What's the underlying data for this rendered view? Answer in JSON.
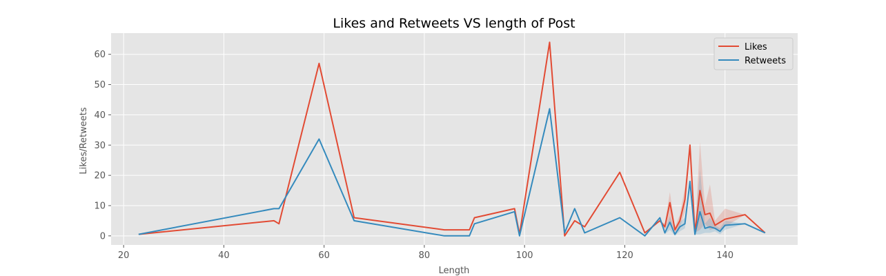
{
  "chart_data": {
    "type": "line",
    "title": "Likes and Retweets VS length of Post",
    "xlabel": "Length",
    "ylabel": "Likes/Retweets",
    "xlim": [
      17.5,
      154.5
    ],
    "ylim": [
      -3,
      67
    ],
    "xticks": [
      20,
      40,
      60,
      80,
      100,
      120,
      140
    ],
    "yticks": [
      0,
      10,
      20,
      30,
      40,
      50,
      60
    ],
    "grid": true,
    "legend_position": "top-right",
    "series": [
      {
        "name": "Likes",
        "color": "#E24A33",
        "x": [
          23,
          50,
          51,
          59,
          66,
          84,
          89,
          90,
          98,
          99,
          105,
          108,
          110,
          112,
          119,
          124,
          127,
          128,
          129,
          130,
          131,
          132,
          133,
          134,
          135,
          136,
          137,
          138,
          139,
          140,
          144,
          148
        ],
        "y": [
          0.5,
          5,
          4,
          57,
          6,
          2,
          2,
          6,
          9,
          0.5,
          64,
          0,
          5,
          3,
          21,
          1,
          5,
          3,
          11,
          2,
          5,
          12,
          30,
          1,
          15,
          7,
          7.5,
          3.5,
          4.5,
          5.5,
          7,
          1
        ],
        "ci_lower": [
          0.5,
          5,
          4,
          57,
          6,
          2,
          2,
          6,
          9,
          0.5,
          64,
          0,
          5,
          3,
          21,
          1,
          5,
          2,
          5,
          1,
          3,
          8,
          30,
          1,
          2,
          4,
          2,
          2.5,
          2,
          3,
          7,
          1
        ],
        "ci_upper": [
          0.5,
          5,
          4,
          57,
          6,
          2,
          2,
          6,
          9,
          0.5,
          64,
          0,
          5,
          3,
          21,
          1,
          5,
          4,
          14.5,
          3,
          7,
          16,
          30,
          1,
          31,
          10,
          17,
          5,
          7,
          9,
          7,
          1
        ]
      },
      {
        "name": "Retweets",
        "color": "#348ABD",
        "x": [
          23,
          50,
          51,
          59,
          66,
          84,
          89,
          90,
          98,
          99,
          105,
          108,
          110,
          112,
          119,
          124,
          127,
          128,
          129,
          130,
          131,
          132,
          133,
          134,
          135,
          136,
          137,
          138,
          139,
          140,
          144,
          148
        ],
        "y": [
          0.5,
          9,
          9,
          32,
          5,
          0,
          0,
          4,
          8,
          0,
          42,
          1,
          9,
          1,
          6,
          0,
          6,
          1,
          4.5,
          0.5,
          3,
          4,
          18,
          0.5,
          8,
          2.5,
          3,
          2.5,
          1.5,
          3.5,
          4,
          1
        ],
        "ci_lower": [
          0.5,
          9,
          9,
          32,
          5,
          0,
          0,
          4,
          8,
          0,
          42,
          1,
          9,
          1,
          6,
          0,
          6,
          0.5,
          2,
          0,
          1.5,
          2.5,
          18,
          0.5,
          0.5,
          1,
          1,
          1.5,
          0.5,
          2,
          4,
          1
        ],
        "ci_upper": [
          0.5,
          9,
          9,
          32,
          5,
          0,
          0,
          4,
          8,
          0,
          42,
          1,
          9,
          1,
          6,
          0,
          6,
          1.5,
          6.5,
          1,
          4.5,
          6,
          18,
          0.5,
          22,
          4,
          6,
          3.5,
          2.5,
          5,
          4,
          1
        ]
      }
    ]
  },
  "style": {
    "plot_background": "#E5E5E5",
    "grid_color": "#FFFFFF",
    "tick_color": "#555555"
  }
}
